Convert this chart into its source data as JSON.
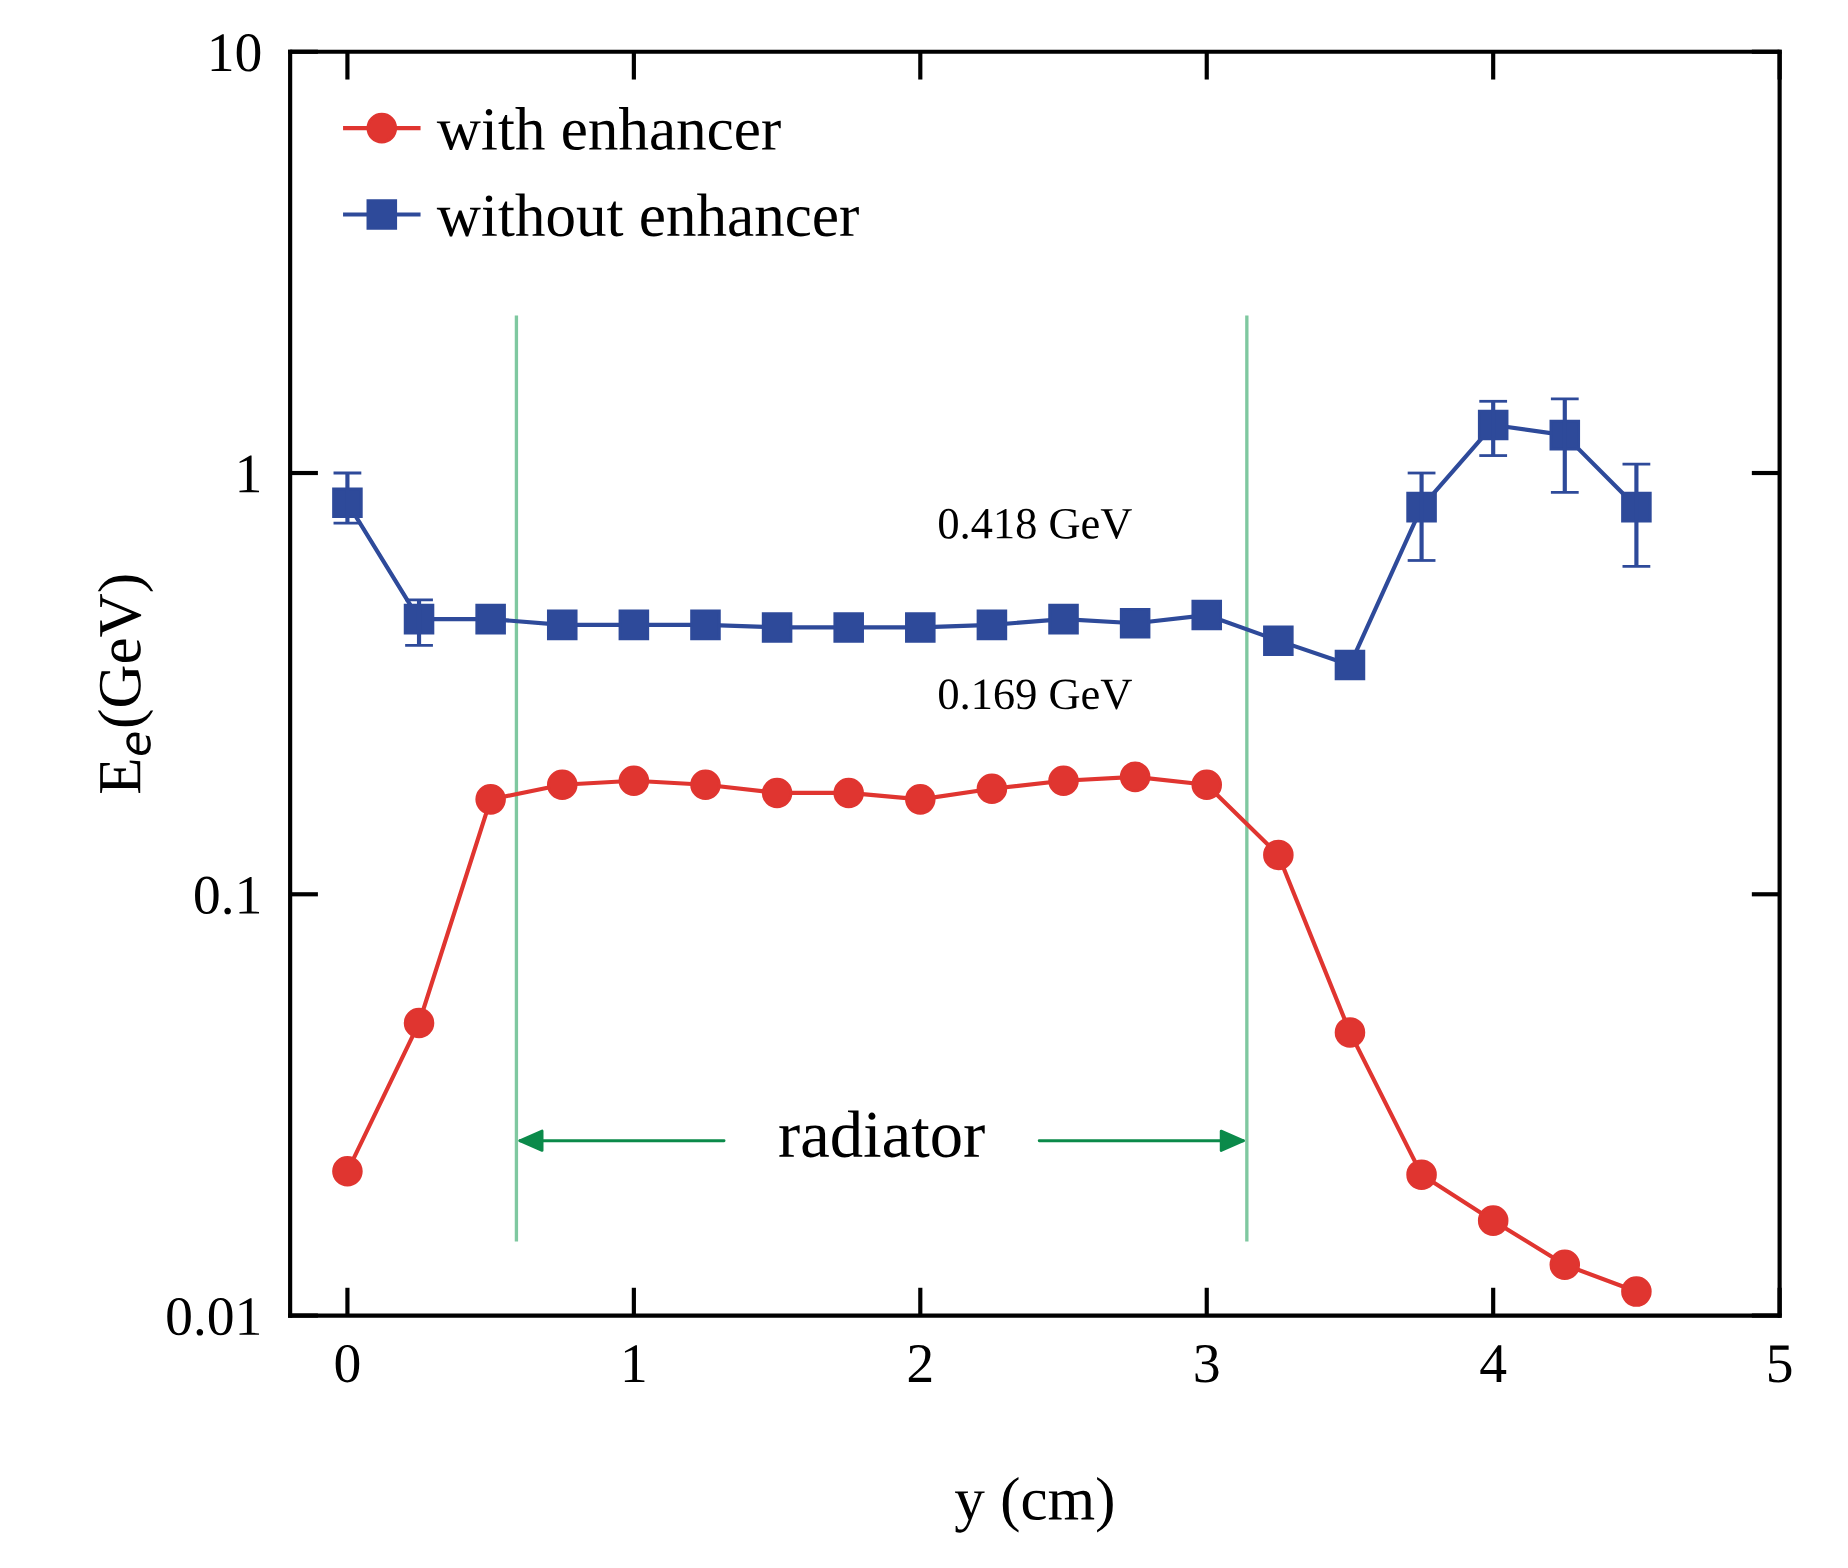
{
  "chart_data": {
    "type": "line",
    "xlabel": "y (cm)",
    "ylabel": "E$_{e}$(GeV)",
    "xlim": [
      -0.2,
      5
    ],
    "xticks": [
      0,
      1,
      2,
      3,
      4,
      5
    ],
    "ylim": [
      0.01,
      10
    ],
    "yticks": [
      0.01,
      0.1,
      1,
      10
    ],
    "log": "y",
    "x": [
      0,
      0.25,
      0.5,
      0.75,
      1,
      1.25,
      1.5,
      1.75,
      2,
      2.25,
      2.5,
      2.75,
      3,
      3.25,
      3.5,
      3.75,
      4,
      4.25,
      4.5
    ],
    "series": [
      {
        "name": "with enhancer",
        "color": "#e03530",
        "marker": "circle",
        "values": [
          0.022,
          0.0495,
          0.168,
          0.182,
          0.186,
          0.182,
          0.174,
          0.174,
          0.168,
          0.178,
          0.186,
          0.19,
          0.182,
          0.124,
          0.047,
          0.0216,
          0.0168,
          0.0132,
          0.0114
        ]
      },
      {
        "name": "without enhancer",
        "color": "#2e4a9a",
        "marker": "square",
        "values": [
          0.85,
          0.45,
          0.45,
          0.436,
          0.436,
          0.436,
          0.43,
          0.43,
          0.43,
          0.436,
          0.45,
          0.44,
          0.46,
          0.4,
          0.35,
          0.83,
          1.3,
          1.23,
          0.83
        ],
        "errors": [
          [
            0.76,
            1.0
          ],
          [
            0.39,
            0.5
          ],
          null,
          null,
          null,
          null,
          null,
          null,
          null,
          null,
          null,
          null,
          null,
          null,
          null,
          [
            0.62,
            1.0
          ],
          [
            1.1,
            1.48
          ],
          [
            0.9,
            1.5
          ],
          [
            0.6,
            1.05
          ]
        ]
      }
    ],
    "ref_lines": [
      {
        "axis": "x",
        "value": 0.59,
        "color": "#7fc8a0"
      },
      {
        "axis": "x",
        "value": 3.14,
        "color": "#7fc8a0"
      }
    ],
    "annotations": [
      "0.418 GeV",
      "0.169 GeV",
      {
        "text": "radiator",
        "x": 0.59,
        "y": 0.026
      }
    ],
    "legend": "top left",
    "grid": false
  }
}
